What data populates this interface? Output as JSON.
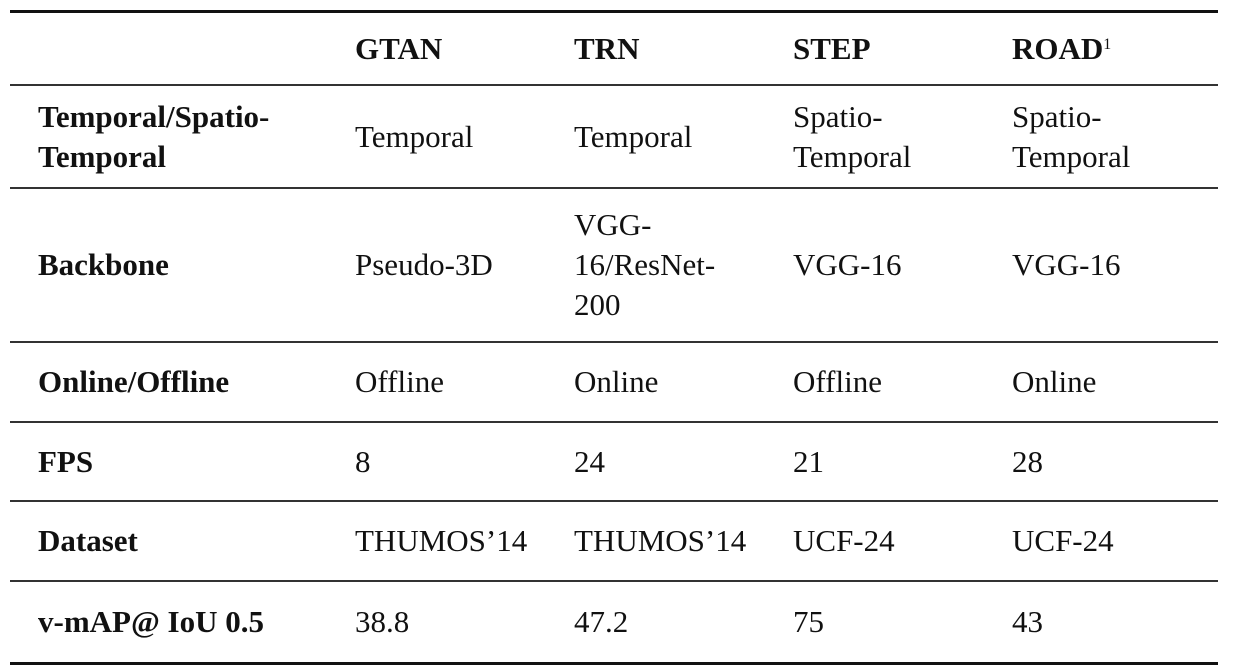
{
  "table": {
    "header": {
      "corner": "",
      "columns": [
        {
          "label": "GTAN",
          "sup": ""
        },
        {
          "label": "TRN",
          "sup": ""
        },
        {
          "label": "STEP",
          "sup": ""
        },
        {
          "label": "ROAD",
          "sup": "1"
        }
      ]
    },
    "rows": [
      {
        "label": "Temporal/Spatio-Temporal",
        "label_lines": [
          "Temporal/Spatio-",
          "Temporal"
        ],
        "cells": [
          [
            "Temporal"
          ],
          [
            "Temporal"
          ],
          [
            "Spatio-",
            "Temporal"
          ],
          [
            "Spatio-",
            "Temporal"
          ]
        ]
      },
      {
        "label": "Backbone",
        "label_lines": [
          "Backbone"
        ],
        "cells": [
          [
            "Pseudo-3D"
          ],
          [
            "VGG-",
            "16/ResNet-",
            "200"
          ],
          [
            "VGG-16"
          ],
          [
            "VGG-16"
          ]
        ]
      },
      {
        "label": "Online/Offline",
        "label_lines": [
          "Online/Offline"
        ],
        "cells": [
          [
            "Offline"
          ],
          [
            "Online"
          ],
          [
            "Offline"
          ],
          [
            "Online"
          ]
        ]
      },
      {
        "label": "FPS",
        "label_lines": [
          "FPS"
        ],
        "cells": [
          [
            "8"
          ],
          [
            "24"
          ],
          [
            "21"
          ],
          [
            "28"
          ]
        ]
      },
      {
        "label": "Dataset",
        "label_lines": [
          "Dataset"
        ],
        "cells": [
          [
            "THUMOS’14"
          ],
          [
            "THUMOS’14"
          ],
          [
            "UCF-24"
          ],
          [
            "UCF-24"
          ]
        ]
      },
      {
        "label": "v-mAP@ IoU 0.5",
        "label_lines": [
          "v-mAP@ IoU 0.5"
        ],
        "cells": [
          [
            "38.8"
          ],
          [
            "47.2"
          ],
          [
            "75"
          ],
          [
            "43"
          ]
        ]
      }
    ]
  }
}
